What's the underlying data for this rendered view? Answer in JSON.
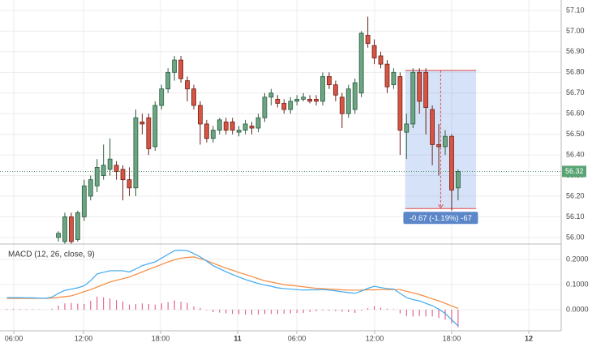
{
  "chart_data": [
    {
      "type": "candlestick",
      "x": [
        0,
        1,
        2,
        3,
        4,
        5,
        6,
        7,
        8,
        9,
        10,
        11,
        12,
        13,
        14,
        15,
        16,
        17,
        18,
        19,
        20,
        21,
        22,
        23,
        24,
        25,
        26,
        27,
        28,
        29,
        30,
        31,
        32,
        33,
        34,
        35,
        36,
        37,
        38,
        39,
        40,
        41,
        42,
        43,
        44,
        45,
        46,
        47,
        48,
        49,
        50,
        51,
        52,
        53,
        54,
        55,
        56,
        57,
        58,
        59,
        60,
        61,
        62
      ],
      "open": [
        56.0,
        55.98,
        56.1,
        55.99,
        56.1,
        56.2,
        56.25,
        56.3,
        56.33,
        56.35,
        56.33,
        56.28,
        56.24,
        56.56,
        56.58,
        56.44,
        56.64,
        56.72,
        56.8,
        56.86,
        56.76,
        56.72,
        56.64,
        56.55,
        56.48,
        56.52,
        56.56,
        56.56,
        56.51,
        56.52,
        56.54,
        56.53,
        56.58,
        56.68,
        56.67,
        56.65,
        56.62,
        56.66,
        56.67,
        56.67,
        56.67,
        56.66,
        56.78,
        56.74,
        56.68,
        56.6,
        56.62,
        56.7,
        56.98,
        56.93,
        56.88,
        56.84,
        56.74,
        56.78,
        56.51,
        56.55,
        56.8,
        56.8,
        56.62,
        56.45,
        56.44,
        56.49,
        56.24
      ],
      "high": [
        56.03,
        56.12,
        56.12,
        56.13,
        56.28,
        56.3,
        56.38,
        56.45,
        56.48,
        56.37,
        56.35,
        56.34,
        56.62,
        56.6,
        56.6,
        56.66,
        56.74,
        56.82,
        56.88,
        56.88,
        56.78,
        56.74,
        56.66,
        56.57,
        56.54,
        56.58,
        56.58,
        56.58,
        56.54,
        56.57,
        56.56,
        56.6,
        56.7,
        56.72,
        56.69,
        56.67,
        56.68,
        56.69,
        56.7,
        56.69,
        56.69,
        56.8,
        56.8,
        56.76,
        56.7,
        56.74,
        56.77,
        57.0,
        57.07,
        56.96,
        56.9,
        56.86,
        56.82,
        56.8,
        56.6,
        56.82,
        56.82,
        56.82,
        56.64,
        56.55,
        56.52,
        56.5,
        56.33
      ],
      "low": [
        55.98,
        55.97,
        55.97,
        55.98,
        56.08,
        56.18,
        56.22,
        56.28,
        56.3,
        56.28,
        56.18,
        56.2,
        56.2,
        56.5,
        56.4,
        56.42,
        56.62,
        56.7,
        56.76,
        56.75,
        56.66,
        56.62,
        56.45,
        56.46,
        56.46,
        56.5,
        56.5,
        56.5,
        56.49,
        56.5,
        56.5,
        56.51,
        56.56,
        56.64,
        56.63,
        56.6,
        56.6,
        56.64,
        56.66,
        56.65,
        56.64,
        56.64,
        56.72,
        56.66,
        56.53,
        56.58,
        56.6,
        56.68,
        56.92,
        56.84,
        56.82,
        56.7,
        56.72,
        56.4,
        56.38,
        56.53,
        56.6,
        56.5,
        56.35,
        56.3,
        56.4,
        56.13,
        56.18
      ],
      "close": [
        56.02,
        56.1,
        55.98,
        56.12,
        56.25,
        56.28,
        56.34,
        56.35,
        56.38,
        56.32,
        56.28,
        56.24,
        56.58,
        56.55,
        56.43,
        56.64,
        56.72,
        56.8,
        56.86,
        56.77,
        56.72,
        56.64,
        56.55,
        56.48,
        56.52,
        56.57,
        56.52,
        56.52,
        56.52,
        56.55,
        56.53,
        56.58,
        56.68,
        56.7,
        56.65,
        56.62,
        56.66,
        56.67,
        56.68,
        56.66,
        56.66,
        56.78,
        56.74,
        56.69,
        56.6,
        56.72,
        56.75,
        56.99,
        56.94,
        56.87,
        56.84,
        56.73,
        56.8,
        56.52,
        56.55,
        56.8,
        56.66,
        56.63,
        56.45,
        56.44,
        56.49,
        56.23,
        56.32
      ],
      "up_color": "#6ba583",
      "down_color": "#d75442",
      "xlim": [
        -9.06,
        77.99
      ],
      "ylim": [
        55.972,
        57.151
      ],
      "yticks": [
        {
          "value": 56.0,
          "label": "56.00"
        },
        {
          "value": 56.1,
          "label": "56.10"
        },
        {
          "value": 56.2,
          "label": "56.20"
        },
        {
          "value": 56.3,
          "label": "56.30"
        },
        {
          "value": 56.4,
          "label": "56.40"
        },
        {
          "value": 56.5,
          "label": "56.50"
        },
        {
          "value": 56.6,
          "label": "56.60"
        },
        {
          "value": 56.7,
          "label": "56.70"
        },
        {
          "value": 56.8,
          "label": "56.80"
        },
        {
          "value": 56.9,
          "label": "56.90"
        },
        {
          "value": 57.0,
          "label": "57.00"
        },
        {
          "value": 57.1,
          "label": "57.10"
        }
      ],
      "last_price": 56.32,
      "measure": {
        "x_start": 53.8,
        "x_end": 64.8,
        "from": 56.81,
        "to": 56.14,
        "label": "-0.67 (-1.19%) -67"
      },
      "grid": true
    },
    {
      "type": "macd",
      "title": "MACD (12, 26, close, 9)",
      "x": [
        -8,
        -7,
        -6,
        -5,
        -4,
        -3,
        -2,
        -1,
        0,
        1,
        2,
        3,
        4,
        5,
        6,
        7,
        8,
        9,
        10,
        11,
        12,
        13,
        14,
        15,
        16,
        17,
        18,
        19,
        20,
        21,
        22,
        23,
        24,
        25,
        26,
        27,
        28,
        29,
        30,
        31,
        32,
        33,
        34,
        35,
        36,
        37,
        38,
        39,
        40,
        41,
        42,
        43,
        44,
        45,
        46,
        47,
        48,
        49,
        50,
        51,
        52,
        53,
        54,
        55,
        56,
        57,
        58,
        59,
        60,
        61,
        62
      ],
      "series": [
        {
          "style": "histogram",
          "color": "#e0457b",
          "values": [
            0.003,
            0.003,
            0.003,
            0.002,
            0.002,
            0.001,
            0.0,
            0.004,
            0.016,
            0.025,
            0.027,
            0.024,
            0.023,
            0.035,
            0.052,
            0.049,
            0.045,
            0.038,
            0.032,
            0.02,
            0.022,
            0.025,
            0.023,
            0.02,
            0.025,
            0.03,
            0.037,
            0.032,
            0.027,
            0.013,
            0.007,
            -0.002,
            -0.01,
            -0.012,
            -0.014,
            -0.017,
            -0.018,
            -0.02,
            -0.02,
            -0.019,
            -0.017,
            -0.017,
            -0.018,
            -0.016,
            -0.015,
            -0.014,
            -0.013,
            -0.009,
            -0.006,
            -0.004,
            -0.004,
            -0.006,
            -0.008,
            -0.01,
            -0.013,
            -0.004,
            0.006,
            0.014,
            0.008,
            0.004,
            0.002,
            -0.015,
            -0.025,
            -0.027,
            -0.025,
            -0.027,
            -0.027,
            -0.033,
            -0.04,
            -0.055,
            -0.07
          ]
        },
        {
          "style": "line",
          "color": "#f7883b",
          "values": [
            0.045,
            0.045,
            0.045,
            0.045,
            0.045,
            0.045,
            0.045,
            0.046,
            0.049,
            0.052,
            0.055,
            0.063,
            0.072,
            0.08,
            0.09,
            0.1,
            0.11,
            0.117,
            0.123,
            0.13,
            0.14,
            0.15,
            0.16,
            0.17,
            0.18,
            0.19,
            0.198,
            0.205,
            0.208,
            0.21,
            0.203,
            0.195,
            0.185,
            0.175,
            0.165,
            0.157,
            0.148,
            0.14,
            0.132,
            0.123,
            0.115,
            0.11,
            0.105,
            0.1,
            0.097,
            0.094,
            0.091,
            0.088,
            0.085,
            0.084,
            0.082,
            0.081,
            0.079,
            0.078,
            0.078,
            0.078,
            0.079,
            0.079,
            0.08,
            0.08,
            0.08,
            0.08,
            0.073,
            0.067,
            0.06,
            0.052,
            0.043,
            0.035,
            0.025,
            0.015,
            0.005
          ]
        },
        {
          "style": "line",
          "color": "#3fa9ee",
          "values": [
            0.048,
            0.048,
            0.048,
            0.047,
            0.047,
            0.046,
            0.045,
            0.05,
            0.065,
            0.077,
            0.082,
            0.087,
            0.095,
            0.115,
            0.142,
            0.149,
            0.155,
            0.155,
            0.155,
            0.15,
            0.162,
            0.175,
            0.183,
            0.19,
            0.205,
            0.22,
            0.235,
            0.237,
            0.235,
            0.223,
            0.21,
            0.193,
            0.175,
            0.163,
            0.151,
            0.14,
            0.13,
            0.12,
            0.112,
            0.104,
            0.098,
            0.093,
            0.087,
            0.084,
            0.082,
            0.08,
            0.078,
            0.079,
            0.079,
            0.08,
            0.078,
            0.075,
            0.071,
            0.068,
            0.065,
            0.074,
            0.085,
            0.093,
            0.088,
            0.084,
            0.082,
            0.065,
            0.048,
            0.04,
            0.035,
            0.025,
            0.016,
            0.002,
            -0.015,
            -0.04,
            -0.065
          ]
        }
      ],
      "xlim": [
        -9.06,
        77.99
      ],
      "xticks": [
        {
          "value": -6.92,
          "label": "06:00"
        },
        {
          "value": 3.9,
          "label": "12:00"
        },
        {
          "value": 15.85,
          "label": "18:00"
        },
        {
          "value": 27.8,
          "label": "11"
        },
        {
          "value": 36.98,
          "label": "06:00"
        },
        {
          "value": 49.06,
          "label": "12:00"
        },
        {
          "value": 61.0,
          "label": "18:00"
        },
        {
          "value": 72.96,
          "label": "12"
        }
      ],
      "ylim": [
        -0.084,
        0.258
      ],
      "yticks": [
        {
          "value": 0.0,
          "label": "0.0000"
        },
        {
          "value": 0.1,
          "label": "0.1000"
        },
        {
          "value": 0.2,
          "label": "0.2000"
        }
      ],
      "grid": true
    }
  ]
}
